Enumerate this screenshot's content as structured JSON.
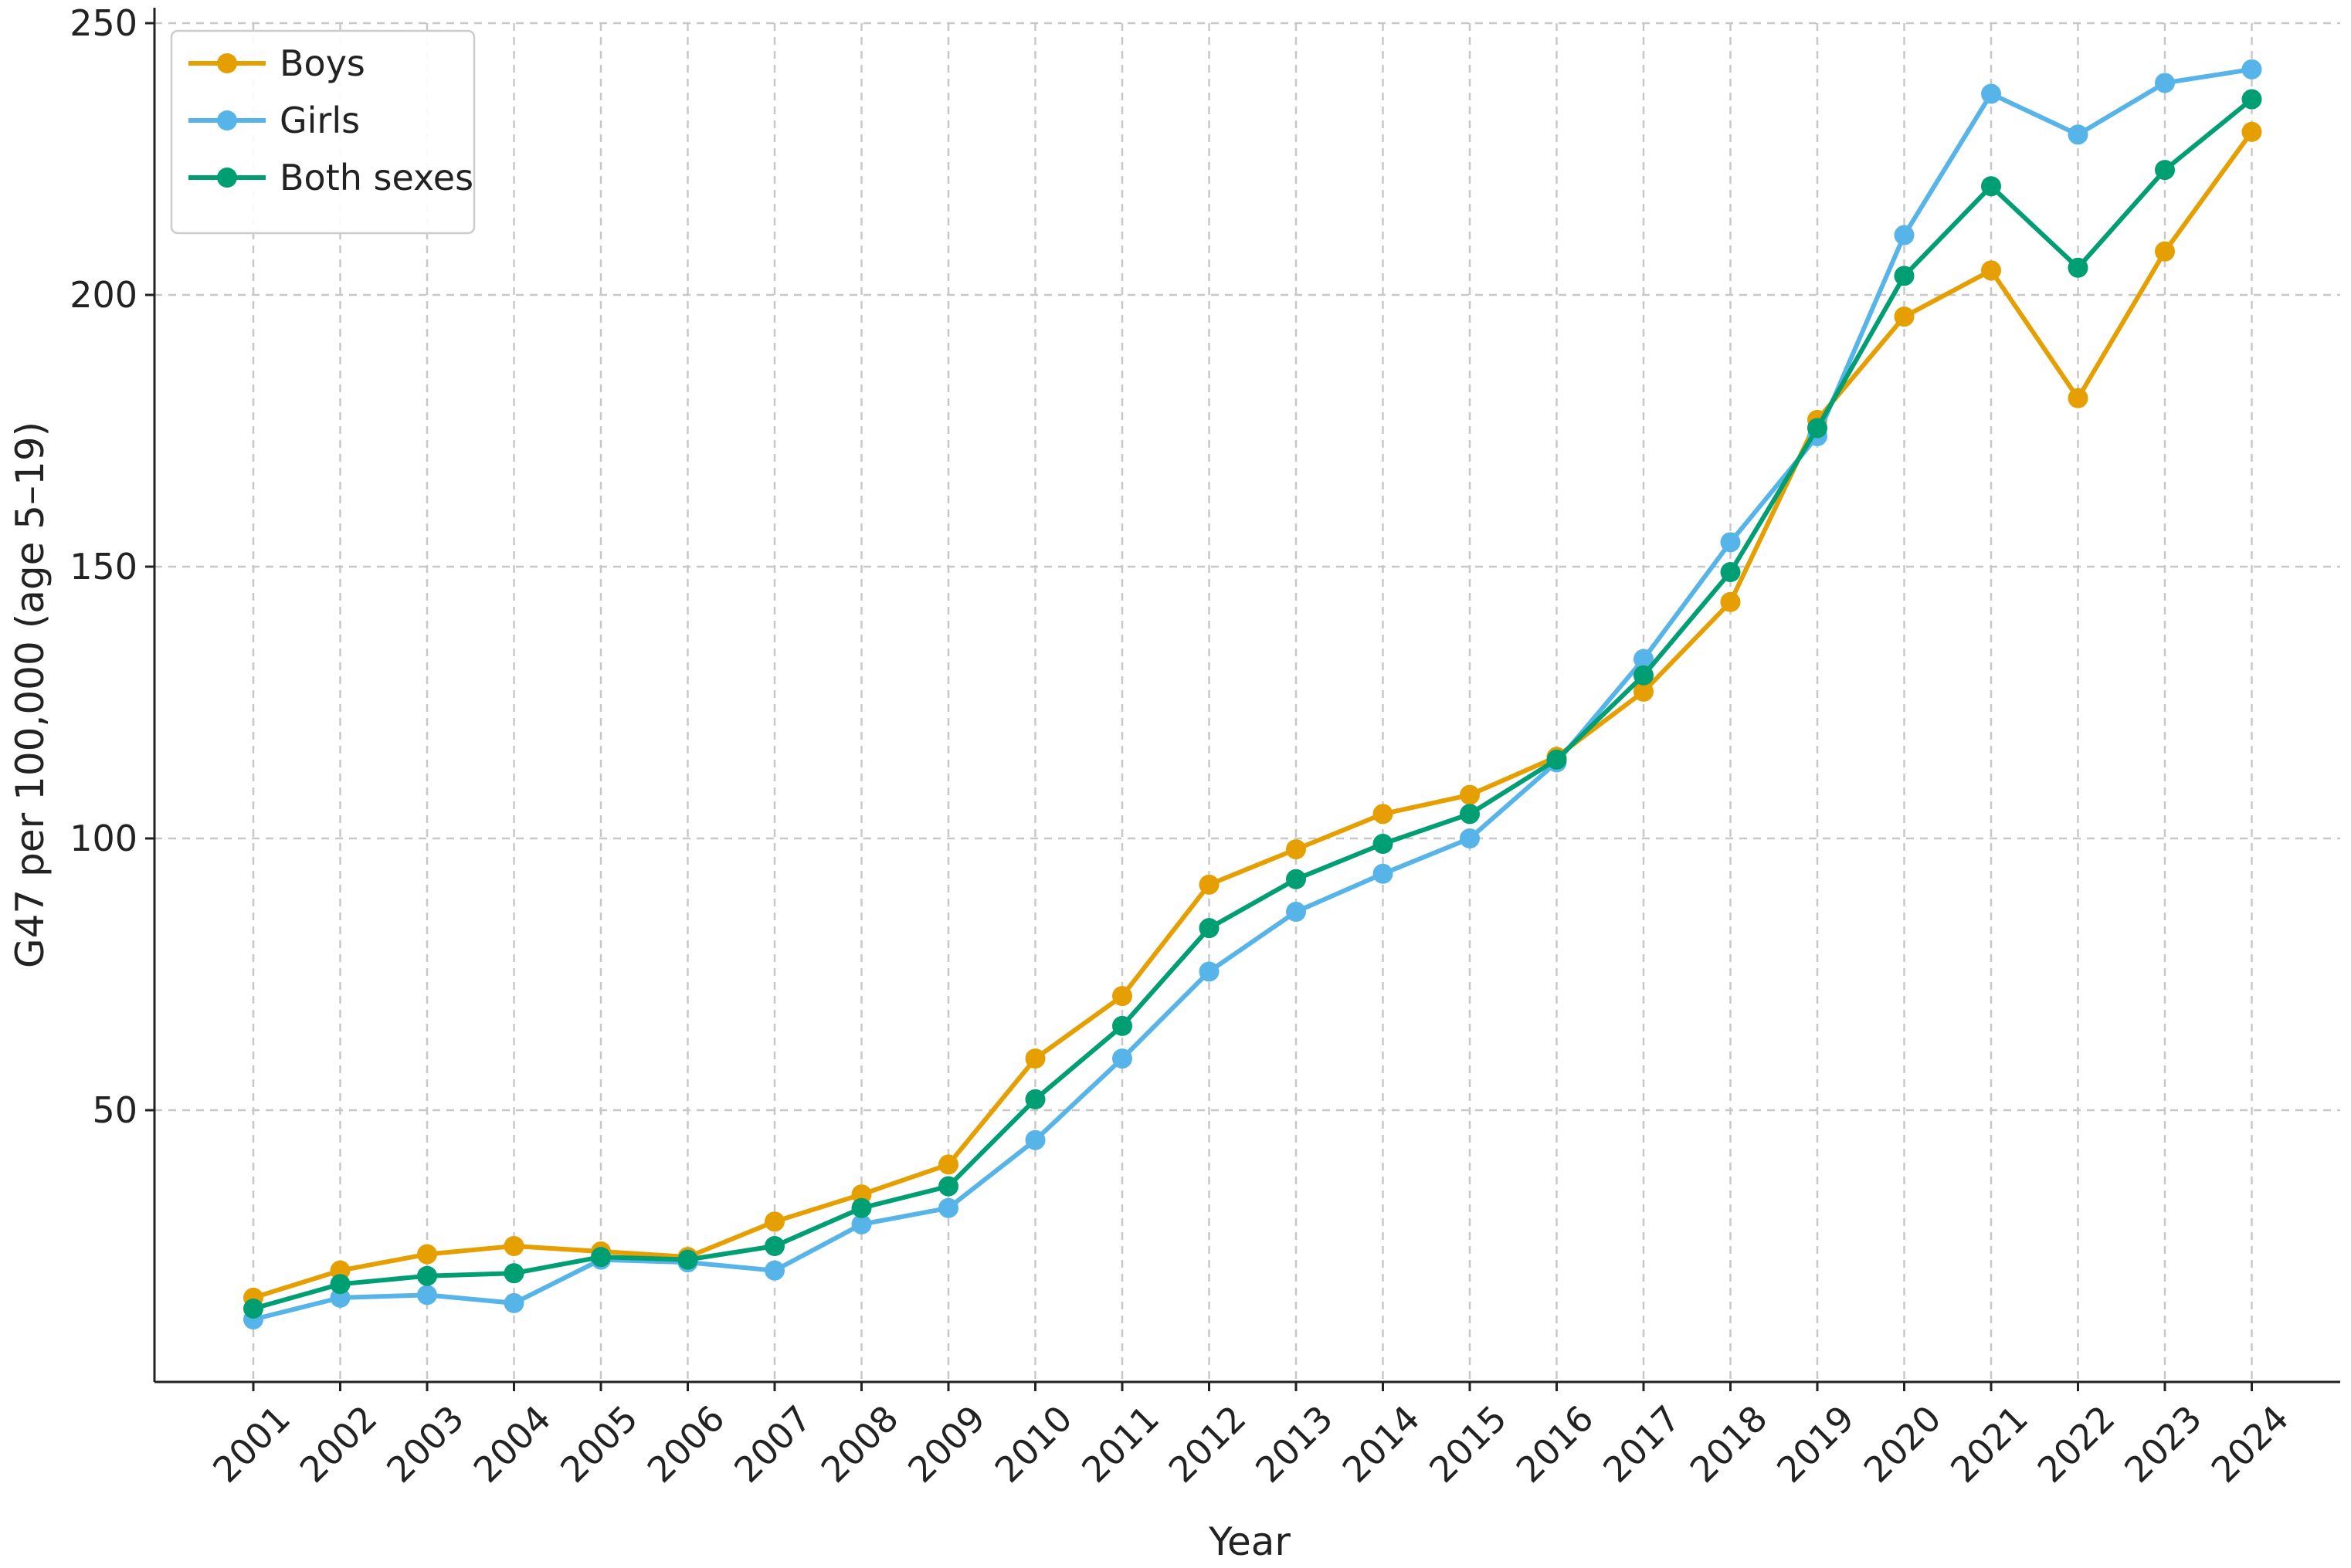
{
  "chart_data": {
    "type": "line",
    "title": "",
    "xlabel": "Year",
    "ylabel": "G47 per 100,000 (age 5–19)",
    "ylim": [
      0,
      250
    ],
    "yticks": [
      50,
      100,
      150,
      200,
      250
    ],
    "grid": true,
    "legend_position": "top-left",
    "x": [
      "2001",
      "2002",
      "2003",
      "2004",
      "2005",
      "2006",
      "2007",
      "2008",
      "2009",
      "2010",
      "2011",
      "2012",
      "2013",
      "2014",
      "2015",
      "2016",
      "2017",
      "2018",
      "2019",
      "2020",
      "2021",
      "2022",
      "2023",
      "2024"
    ],
    "series": [
      {
        "name": "Boys",
        "color": "#E69F00",
        "values": [
          15.5,
          20.5,
          23.5,
          25,
          24,
          23,
          29.5,
          34.5,
          40,
          59.5,
          71,
          91.5,
          98,
          104.5,
          108,
          115,
          127,
          143.5,
          177,
          196,
          204.5,
          181,
          208,
          230
        ]
      },
      {
        "name": "Girls",
        "color": "#56B4E9",
        "values": [
          11.5,
          15.5,
          16,
          14.5,
          22.5,
          22,
          20.5,
          29,
          32,
          44.5,
          59.5,
          75.5,
          86.5,
          93.5,
          100,
          114,
          133,
          154.5,
          174,
          211,
          237,
          229.5,
          239,
          241.5
        ]
      },
      {
        "name": "Both sexes",
        "color": "#009E73",
        "values": [
          13.5,
          18,
          19.5,
          20,
          23,
          22.5,
          25,
          32,
          36,
          52,
          65.5,
          83.5,
          92.5,
          99,
          104.5,
          114.5,
          130,
          149,
          175.5,
          203.5,
          220,
          205,
          223,
          236
        ]
      }
    ]
  }
}
